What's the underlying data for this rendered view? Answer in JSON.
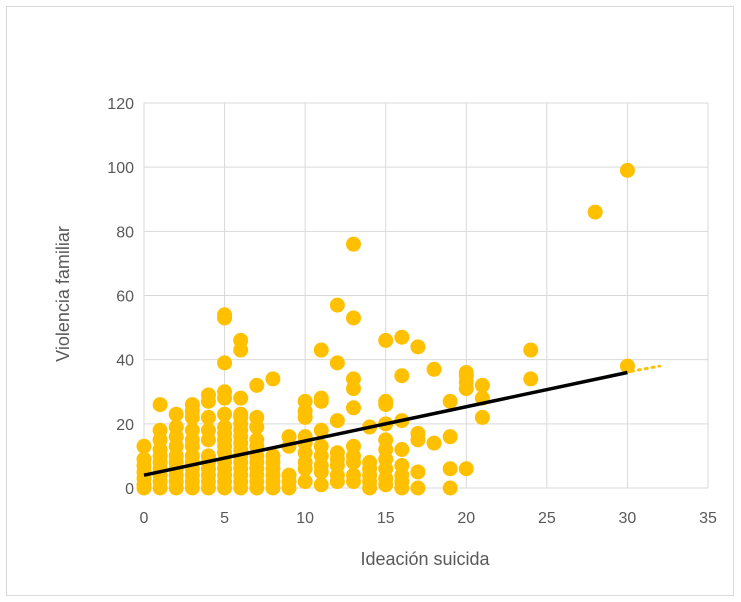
{
  "chart_data": {
    "type": "scatter",
    "title": "",
    "xlabel": "Ideación suicida",
    "ylabel": "Violencia familiar",
    "xlim": [
      0,
      35
    ],
    "ylim": [
      0,
      120
    ],
    "x_ticks": [
      0,
      5,
      10,
      15,
      20,
      25,
      30,
      35
    ],
    "y_ticks": [
      0,
      20,
      40,
      60,
      80,
      100,
      120
    ],
    "grid": true,
    "legend": "none",
    "colors": {
      "points": "#FFC000",
      "trendline": "#000000",
      "grid": "#d9d9d9",
      "axis_text": "#595959"
    },
    "trendline": {
      "type": "linear",
      "x": [
        0,
        30
      ],
      "y": [
        4,
        36
      ],
      "forecast_x_end": 32,
      "forecast_y_end": 38
    },
    "series": [
      {
        "values": [
          [
            0,
            0
          ],
          [
            0,
            1
          ],
          [
            0,
            3
          ],
          [
            0,
            5
          ],
          [
            0,
            7
          ],
          [
            0,
            9
          ],
          [
            0,
            13
          ],
          [
            1,
            0
          ],
          [
            1,
            2
          ],
          [
            1,
            4
          ],
          [
            1,
            6
          ],
          [
            1,
            8
          ],
          [
            1,
            10
          ],
          [
            1,
            12
          ],
          [
            1,
            15
          ],
          [
            1,
            18
          ],
          [
            1,
            26
          ],
          [
            2,
            0
          ],
          [
            2,
            2
          ],
          [
            2,
            4
          ],
          [
            2,
            6
          ],
          [
            2,
            8
          ],
          [
            2,
            10
          ],
          [
            2,
            13
          ],
          [
            2,
            16
          ],
          [
            2,
            19
          ],
          [
            2,
            23
          ],
          [
            3,
            0
          ],
          [
            3,
            2
          ],
          [
            3,
            4
          ],
          [
            3,
            6
          ],
          [
            3,
            8
          ],
          [
            3,
            10
          ],
          [
            3,
            13
          ],
          [
            3,
            15
          ],
          [
            3,
            18
          ],
          [
            3,
            22
          ],
          [
            3,
            24
          ],
          [
            3,
            26
          ],
          [
            4,
            0
          ],
          [
            4,
            2
          ],
          [
            4,
            4
          ],
          [
            4,
            6
          ],
          [
            4,
            8
          ],
          [
            4,
            10
          ],
          [
            4,
            15
          ],
          [
            4,
            18
          ],
          [
            4,
            22
          ],
          [
            4,
            27
          ],
          [
            4,
            29
          ],
          [
            5,
            0
          ],
          [
            5,
            2
          ],
          [
            5,
            4
          ],
          [
            5,
            6
          ],
          [
            5,
            8
          ],
          [
            5,
            11
          ],
          [
            5,
            13
          ],
          [
            5,
            15
          ],
          [
            5,
            17
          ],
          [
            5,
            19
          ],
          [
            5,
            23
          ],
          [
            5,
            28
          ],
          [
            5,
            30
          ],
          [
            5,
            39
          ],
          [
            5,
            53
          ],
          [
            5,
            54
          ],
          [
            6,
            0
          ],
          [
            6,
            2
          ],
          [
            6,
            4
          ],
          [
            6,
            6
          ],
          [
            6,
            8
          ],
          [
            6,
            10
          ],
          [
            6,
            12
          ],
          [
            6,
            14
          ],
          [
            6,
            16
          ],
          [
            6,
            18
          ],
          [
            6,
            20
          ],
          [
            6,
            22
          ],
          [
            6,
            23
          ],
          [
            6,
            28
          ],
          [
            6,
            43
          ],
          [
            6,
            46
          ],
          [
            7,
            0
          ],
          [
            7,
            2
          ],
          [
            7,
            4
          ],
          [
            7,
            6
          ],
          [
            7,
            8
          ],
          [
            7,
            10
          ],
          [
            7,
            13
          ],
          [
            7,
            15
          ],
          [
            7,
            19
          ],
          [
            7,
            22
          ],
          [
            7,
            32
          ],
          [
            8,
            0
          ],
          [
            8,
            2
          ],
          [
            8,
            4
          ],
          [
            8,
            6
          ],
          [
            8,
            8
          ],
          [
            8,
            10
          ],
          [
            8,
            34
          ],
          [
            9,
            0
          ],
          [
            9,
            2
          ],
          [
            9,
            4
          ],
          [
            9,
            13
          ],
          [
            9,
            16
          ],
          [
            10,
            2
          ],
          [
            10,
            6
          ],
          [
            10,
            8
          ],
          [
            10,
            11
          ],
          [
            10,
            14
          ],
          [
            10,
            16
          ],
          [
            10,
            22
          ],
          [
            10,
            24
          ],
          [
            10,
            27
          ],
          [
            11,
            1
          ],
          [
            11,
            5
          ],
          [
            11,
            7
          ],
          [
            11,
            10
          ],
          [
            11,
            13
          ],
          [
            11,
            18
          ],
          [
            11,
            27
          ],
          [
            11,
            28
          ],
          [
            11,
            43
          ],
          [
            12,
            2
          ],
          [
            12,
            4
          ],
          [
            12,
            7
          ],
          [
            12,
            9
          ],
          [
            12,
            11
          ],
          [
            12,
            21
          ],
          [
            12,
            39
          ],
          [
            12,
            57
          ],
          [
            13,
            2
          ],
          [
            13,
            4
          ],
          [
            13,
            8
          ],
          [
            13,
            10
          ],
          [
            13,
            13
          ],
          [
            13,
            25
          ],
          [
            13,
            31
          ],
          [
            13,
            34
          ],
          [
            13,
            53
          ],
          [
            13,
            76
          ],
          [
            14,
            0
          ],
          [
            14,
            2
          ],
          [
            14,
            4
          ],
          [
            14,
            6
          ],
          [
            14,
            8
          ],
          [
            14,
            19
          ],
          [
            15,
            1
          ],
          [
            15,
            3
          ],
          [
            15,
            6
          ],
          [
            15,
            9
          ],
          [
            15,
            12
          ],
          [
            15,
            15
          ],
          [
            15,
            20
          ],
          [
            15,
            26
          ],
          [
            15,
            27
          ],
          [
            15,
            46
          ],
          [
            16,
            0
          ],
          [
            16,
            2
          ],
          [
            16,
            4
          ],
          [
            16,
            7
          ],
          [
            16,
            12
          ],
          [
            16,
            21
          ],
          [
            16,
            35
          ],
          [
            16,
            47
          ],
          [
            17,
            0
          ],
          [
            17,
            5
          ],
          [
            17,
            15
          ],
          [
            17,
            17
          ],
          [
            17,
            44
          ],
          [
            18,
            14
          ],
          [
            18,
            37
          ],
          [
            19,
            0
          ],
          [
            19,
            6
          ],
          [
            19,
            16
          ],
          [
            19,
            27
          ],
          [
            20,
            6
          ],
          [
            20,
            31
          ],
          [
            20,
            33
          ],
          [
            20,
            35
          ],
          [
            20,
            36
          ],
          [
            21,
            22
          ],
          [
            21,
            28
          ],
          [
            21,
            32
          ],
          [
            24,
            34
          ],
          [
            24,
            43
          ],
          [
            28,
            86
          ],
          [
            30,
            38
          ],
          [
            30,
            99
          ]
        ]
      }
    ]
  }
}
